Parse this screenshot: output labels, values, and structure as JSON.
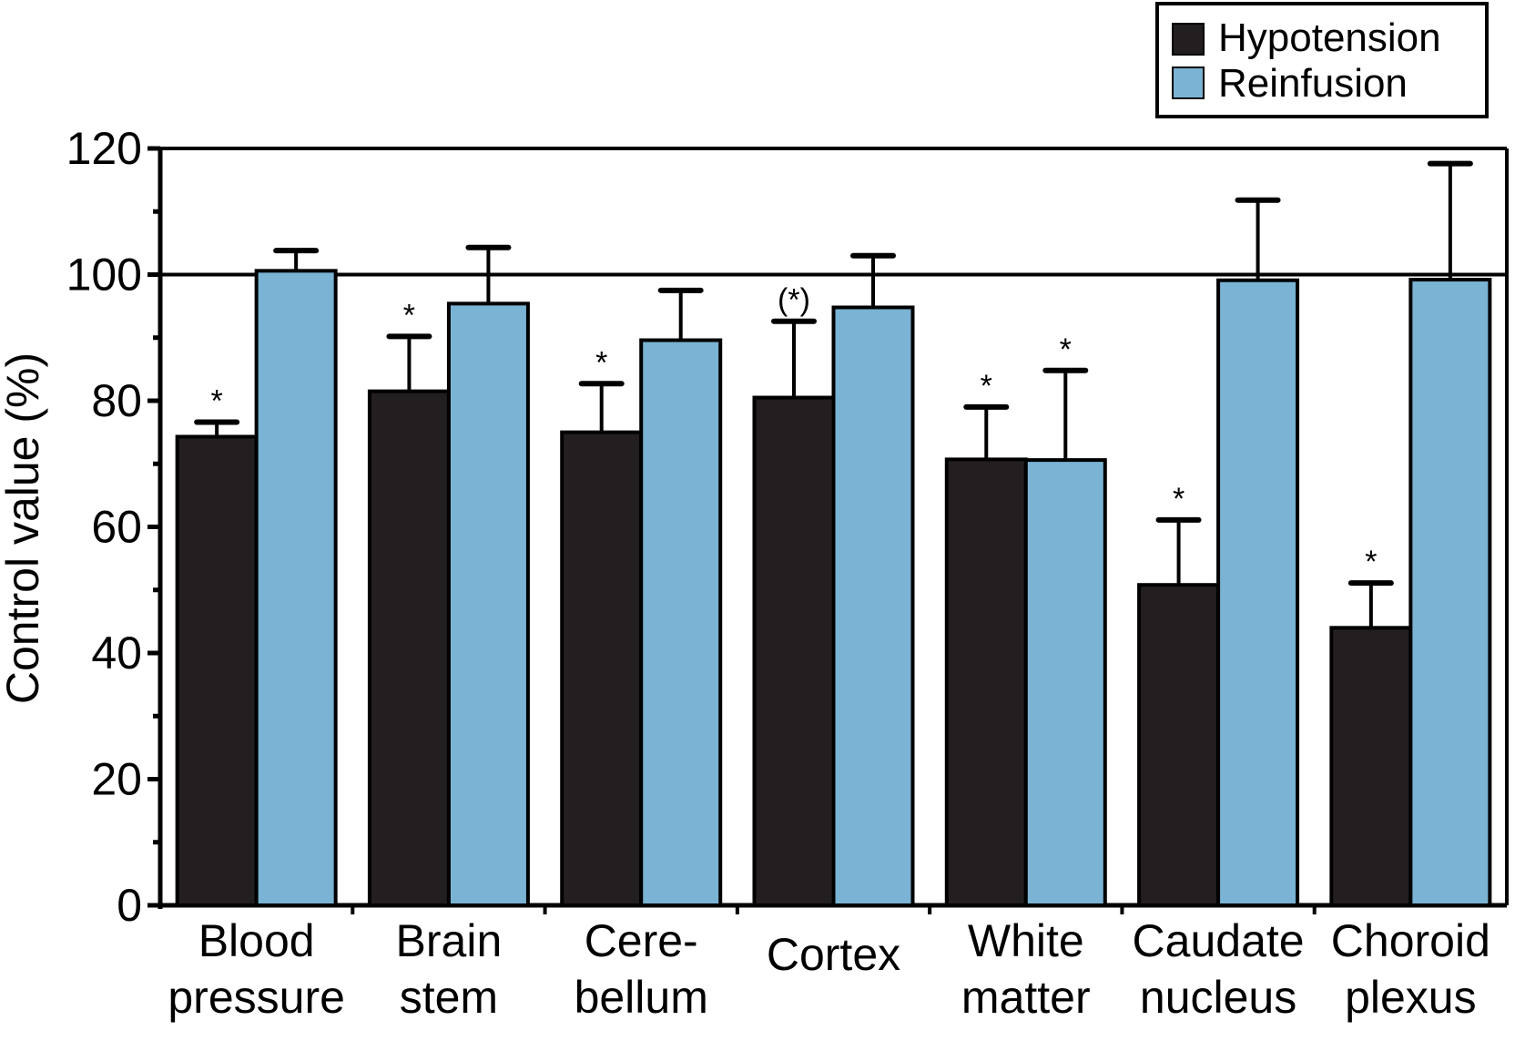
{
  "chart_data": {
    "type": "bar",
    "title": "",
    "xlabel": "",
    "ylabel": "Control value (%)",
    "ylim": [
      0,
      120
    ],
    "yticks": [
      "0",
      "20",
      "40",
      "60",
      "80",
      "100",
      "120"
    ],
    "reference_line": 100,
    "grid": false,
    "legend_position": "top-right",
    "categories": [
      [
        "Blood",
        "pressure"
      ],
      [
        "Brain",
        "stem"
      ],
      [
        "Cere-",
        "bellum"
      ],
      [
        "Cortex"
      ],
      [
        "White",
        "matter"
      ],
      [
        "Caudate",
        "nucleus"
      ],
      [
        "Choroid",
        "plexus"
      ]
    ],
    "series": [
      {
        "name": "Hypotension",
        "color": "#231f20",
        "values": [
          74.3,
          81.5,
          75.0,
          80.5,
          70.7,
          50.8,
          44.0
        ],
        "error_upper": [
          76.6,
          90.2,
          82.7,
          92.6,
          79.0,
          61.1,
          51.1
        ],
        "significance": [
          "*",
          "*",
          "*",
          "(*)",
          "*",
          "*",
          "*"
        ]
      },
      {
        "name": "Reinfusion",
        "color": "#7ab3d3",
        "values": [
          100.6,
          95.4,
          89.6,
          94.8,
          70.6,
          99.1,
          99.2
        ],
        "error_upper": [
          103.8,
          104.3,
          97.5,
          103.0,
          84.8,
          111.8,
          117.6
        ],
        "significance": [
          "",
          "",
          "",
          "",
          "*",
          "",
          ""
        ]
      }
    ]
  }
}
